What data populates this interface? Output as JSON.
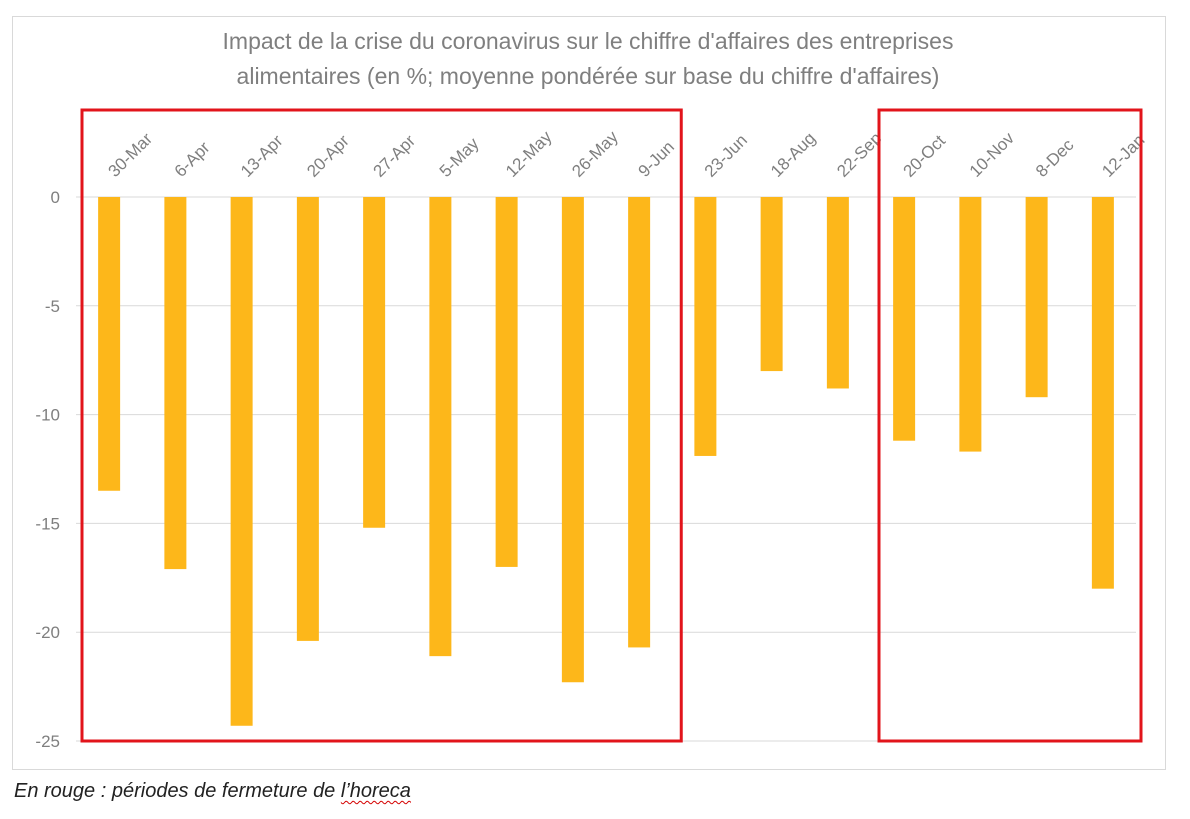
{
  "chart_data": {
    "type": "bar",
    "title_lines": [
      "Impact de la crise du coronavirus sur le chiffre d'affaires des entreprises",
      "alimentaires (en %; moyenne pondérée sur base du chiffre d'affaires)"
    ],
    "categories": [
      "30-Mar",
      "6-Apr",
      "13-Apr",
      "20-Apr",
      "27-Apr",
      "5-May",
      "12-May",
      "26-May",
      "9-Jun",
      "23-Jun",
      "18-Aug",
      "22-Sep",
      "20-Oct",
      "10-Nov",
      "8-Dec",
      "12-Jan"
    ],
    "values": [
      -13.5,
      -17.1,
      -24.3,
      -20.4,
      -15.2,
      -21.1,
      -17.0,
      -22.3,
      -20.7,
      -11.9,
      -8.0,
      -8.8,
      -11.2,
      -11.7,
      -9.2,
      -18.0
    ],
    "yticks": [
      0,
      -5,
      -10,
      -15,
      -20,
      -25
    ],
    "ylim": [
      -25,
      0
    ],
    "grid": true,
    "bar_color": "#FDB71A",
    "highlight_color": "#E2141B",
    "highlight_groups": [
      {
        "from": "30-Mar",
        "to": "9-Jun"
      },
      {
        "from": "20-Oct",
        "to": "12-Jan"
      }
    ],
    "xlabel": "",
    "ylabel": ""
  },
  "caption": {
    "prefix": "En rouge : périodes de fermeture de ",
    "word": "l’horeca"
  }
}
